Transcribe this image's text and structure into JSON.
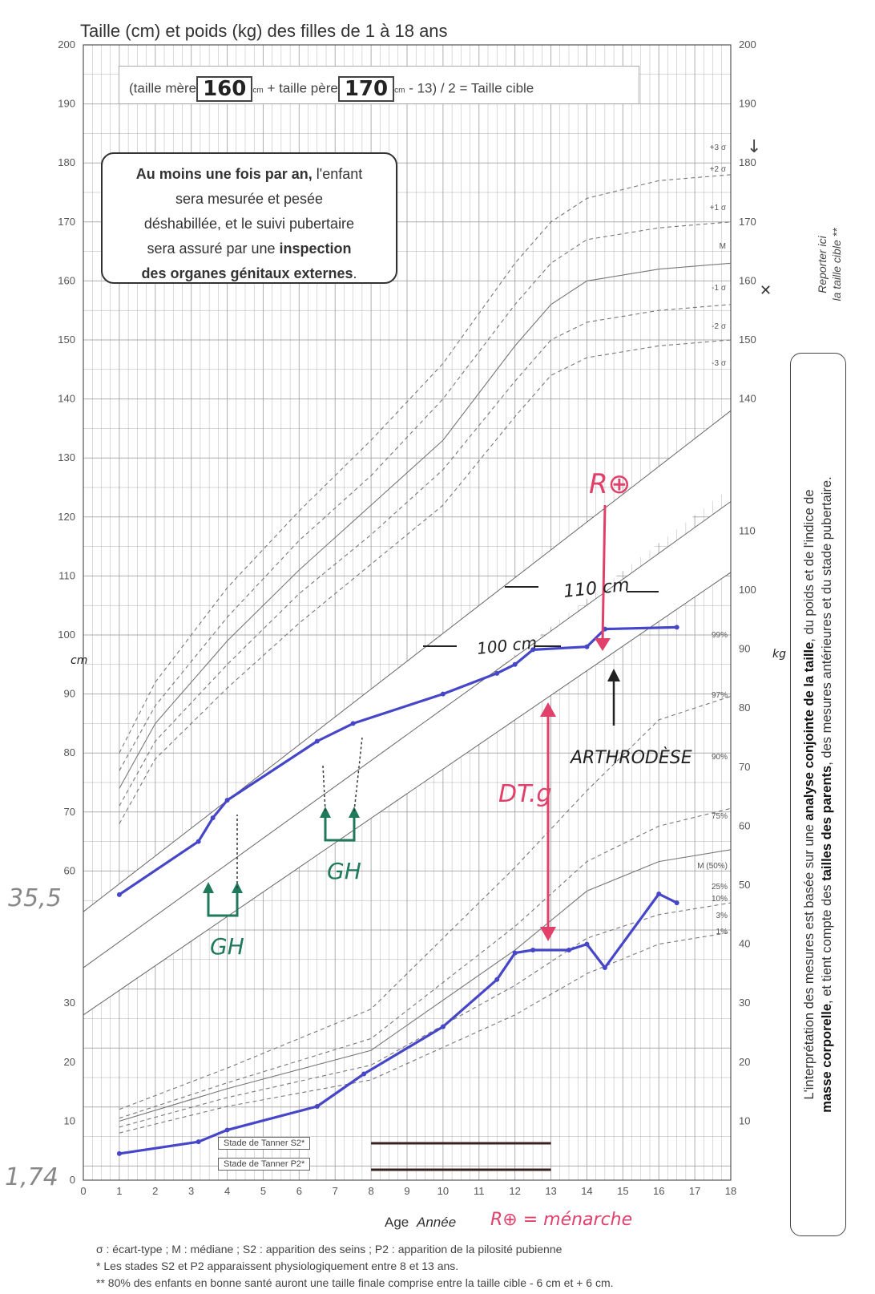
{
  "title": "Taille (cm) et poids (kg) des filles de 1 à 18 ans",
  "formula": {
    "prefix": "(taille mère",
    "mother_value": "160",
    "unit1": "cm",
    "middle": "+ taille père",
    "father_value": "170",
    "unit2": "cm",
    "suffix": "- 13) / 2 = Taille cible"
  },
  "box_note": {
    "line1_bold": "Au moins une fois par an,",
    "line1_rest": " l'enfant",
    "line2": "sera mesurée et pesée",
    "line3": "déshabillée, et le suivi pubertaire",
    "line4_pre": "sera assuré par une ",
    "line4_bold": "inspection",
    "line5_bold": "des organes génitaux externes",
    "line5_rest": "."
  },
  "target_note": {
    "line1": "Reporter ici",
    "line2": "la taille cible **"
  },
  "side_note": {
    "p1": "L'interprétation des mesures est basée sur une ",
    "b1": "analyse conjointe de la taille",
    "p2": ", du poids et de l'indice de",
    "b2": "masse corporelle",
    "p3": ", et tient compte des ",
    "b3": "tailles des parents",
    "p4": ", des mesures antérieures et du stade pubertaire."
  },
  "tanner": {
    "s2": "Stade de Tanner S2*",
    "p2": "Stade de Tanner P2*"
  },
  "footer": {
    "line1": "σ : écart-type ; M : médiane ; S2 : apparition des seins ; P2 : apparition de la pilosité pubienne",
    "line2": "* Les stades S2 et P2 apparaissent physiologiquement entre 8 et 13 ans.",
    "line3": "** 80% des enfants en bonne santé auront une taille finale comprise entre la taille cible - 6 cm et + 6 cm."
  },
  "annotations": {
    "gh": "GH",
    "rplus": "R⊕",
    "arthrodese": "ARTHRODÈSE",
    "dt": "DT.g",
    "h110": "110 cm",
    "h100": "100 cm",
    "menarche": "R⊕ = ménarche",
    "w_start": "35,5",
    "w_start2": "1,74",
    "cm_unit": "cm",
    "kg_unit": "kg"
  },
  "colors": {
    "patient": "#4646c8",
    "pink": "#e0406a",
    "green": "#1f7a5a",
    "grid": "#9a9a9a"
  },
  "chart_data": {
    "type": "line",
    "title": "Taille (cm) et poids (kg) des filles de 1 à 18 ans",
    "xlabel": "Age",
    "xlabel_italic": "Année",
    "x_range": [
      0,
      18
    ],
    "x_ticks": [
      "0",
      "1",
      "2",
      "3",
      "4",
      "5",
      "6",
      "7",
      "8",
      "9",
      "10",
      "11",
      "12",
      "13",
      "14",
      "15",
      "16",
      "17",
      "18"
    ],
    "height_axis": {
      "unit": "cm",
      "range_top": [
        55,
        200
      ],
      "ticks": [
        "60",
        "70",
        "80",
        "90",
        "100",
        "110",
        "120",
        "130",
        "140",
        "150",
        "160",
        "170",
        "180",
        "190",
        "200"
      ]
    },
    "height_axis_right": {
      "ticks": [
        "140",
        "150",
        "160",
        "170",
        "180",
        "190",
        "200"
      ]
    },
    "weight_axis": {
      "unit": "kg",
      "range": [
        0,
        110
      ],
      "ticks": [
        "0",
        "10",
        "20",
        "30"
      ],
      "right_ticks": [
        "10",
        "20",
        "30",
        "40",
        "50",
        "60",
        "70",
        "80",
        "90",
        "100",
        "110"
      ]
    },
    "height_sd_labels": [
      "+3 σ",
      "+2 σ",
      "+1 σ",
      "M",
      "-1 σ",
      "-2 σ",
      "-3 σ"
    ],
    "weight_pct_labels": [
      "99%",
      "97%",
      "90%",
      "75%",
      "M (50%)",
      "25%",
      "10%",
      "3%",
      "1%"
    ],
    "patient_height_cm": {
      "x": [
        1.0,
        3.2,
        3.6,
        4.0,
        6.5,
        7.5,
        10.0,
        11.5,
        12.0,
        12.5,
        14.0,
        14.5,
        16.5
      ],
      "y": [
        56.0,
        65.0,
        69.0,
        72.0,
        82.0,
        85.0,
        90.0,
        93.5,
        95.0,
        97.5,
        98.0,
        101.0,
        101.3
      ]
    },
    "patient_weight_kg": {
      "x": [
        1.0,
        3.2,
        4.0,
        6.5,
        7.8,
        10.0,
        11.5,
        12.0,
        12.5,
        13.5,
        14.0,
        14.5,
        16.0,
        16.5
      ],
      "y": [
        4.5,
        6.5,
        8.5,
        12.5,
        18.0,
        26.0,
        34.0,
        38.5,
        39.0,
        39.0,
        40.0,
        36.0,
        48.5,
        47.0
      ]
    },
    "height_curves": [
      {
        "sd": "+2 σ",
        "x": [
          1,
          2,
          4,
          6,
          8,
          10,
          12,
          13,
          14,
          16,
          18
        ],
        "y": [
          80,
          92,
          108,
          121,
          133,
          146,
          163,
          170,
          174,
          177,
          178
        ]
      },
      {
        "sd": "+1 σ",
        "x": [
          1,
          2,
          4,
          6,
          8,
          10,
          12,
          13,
          14,
          16,
          18
        ],
        "y": [
          77,
          88,
          103,
          116,
          127,
          140,
          156,
          163,
          167,
          169,
          170
        ]
      },
      {
        "sd": "M",
        "x": [
          1,
          2,
          4,
          6,
          8,
          10,
          12,
          13,
          14,
          16,
          18
        ],
        "y": [
          74,
          85,
          99,
          111,
          122,
          133,
          149,
          156,
          160,
          162,
          163
        ]
      },
      {
        "sd": "-1 σ",
        "x": [
          1,
          2,
          4,
          6,
          8,
          10,
          12,
          13,
          14,
          16,
          18
        ],
        "y": [
          71,
          82,
          95,
          107,
          117,
          128,
          143,
          150,
          153,
          155,
          156
        ]
      },
      {
        "sd": "-2 σ",
        "x": [
          1,
          2,
          4,
          6,
          8,
          10,
          12,
          13,
          14,
          16,
          18
        ],
        "y": [
          68,
          79,
          91,
          102,
          112,
          122,
          137,
          144,
          147,
          149,
          150
        ]
      }
    ],
    "weight_curves": [
      {
        "pct": "97%",
        "x": [
          1,
          4,
          8,
          12,
          14,
          16,
          18
        ],
        "y": [
          12,
          19,
          29,
          53,
          66,
          78,
          82
        ]
      },
      {
        "pct": "75%",
        "x": [
          1,
          4,
          8,
          12,
          14,
          16,
          18
        ],
        "y": [
          10.5,
          16.5,
          24,
          43,
          54,
          60,
          63
        ]
      },
      {
        "pct": "M (50%)",
        "x": [
          1,
          4,
          8,
          12,
          14,
          16,
          18
        ],
        "y": [
          10,
          15.5,
          22,
          39,
          49,
          54,
          56
        ]
      },
      {
        "pct": "10%",
        "x": [
          1,
          4,
          8,
          12,
          14,
          16,
          18
        ],
        "y": [
          9,
          14,
          19.5,
          33,
          41,
          45,
          47
        ]
      },
      {
        "pct": "1%",
        "x": [
          1,
          4,
          8,
          12,
          14,
          16,
          18
        ],
        "y": [
          8,
          12.5,
          17,
          28,
          35,
          40,
          42
        ]
      }
    ]
  }
}
